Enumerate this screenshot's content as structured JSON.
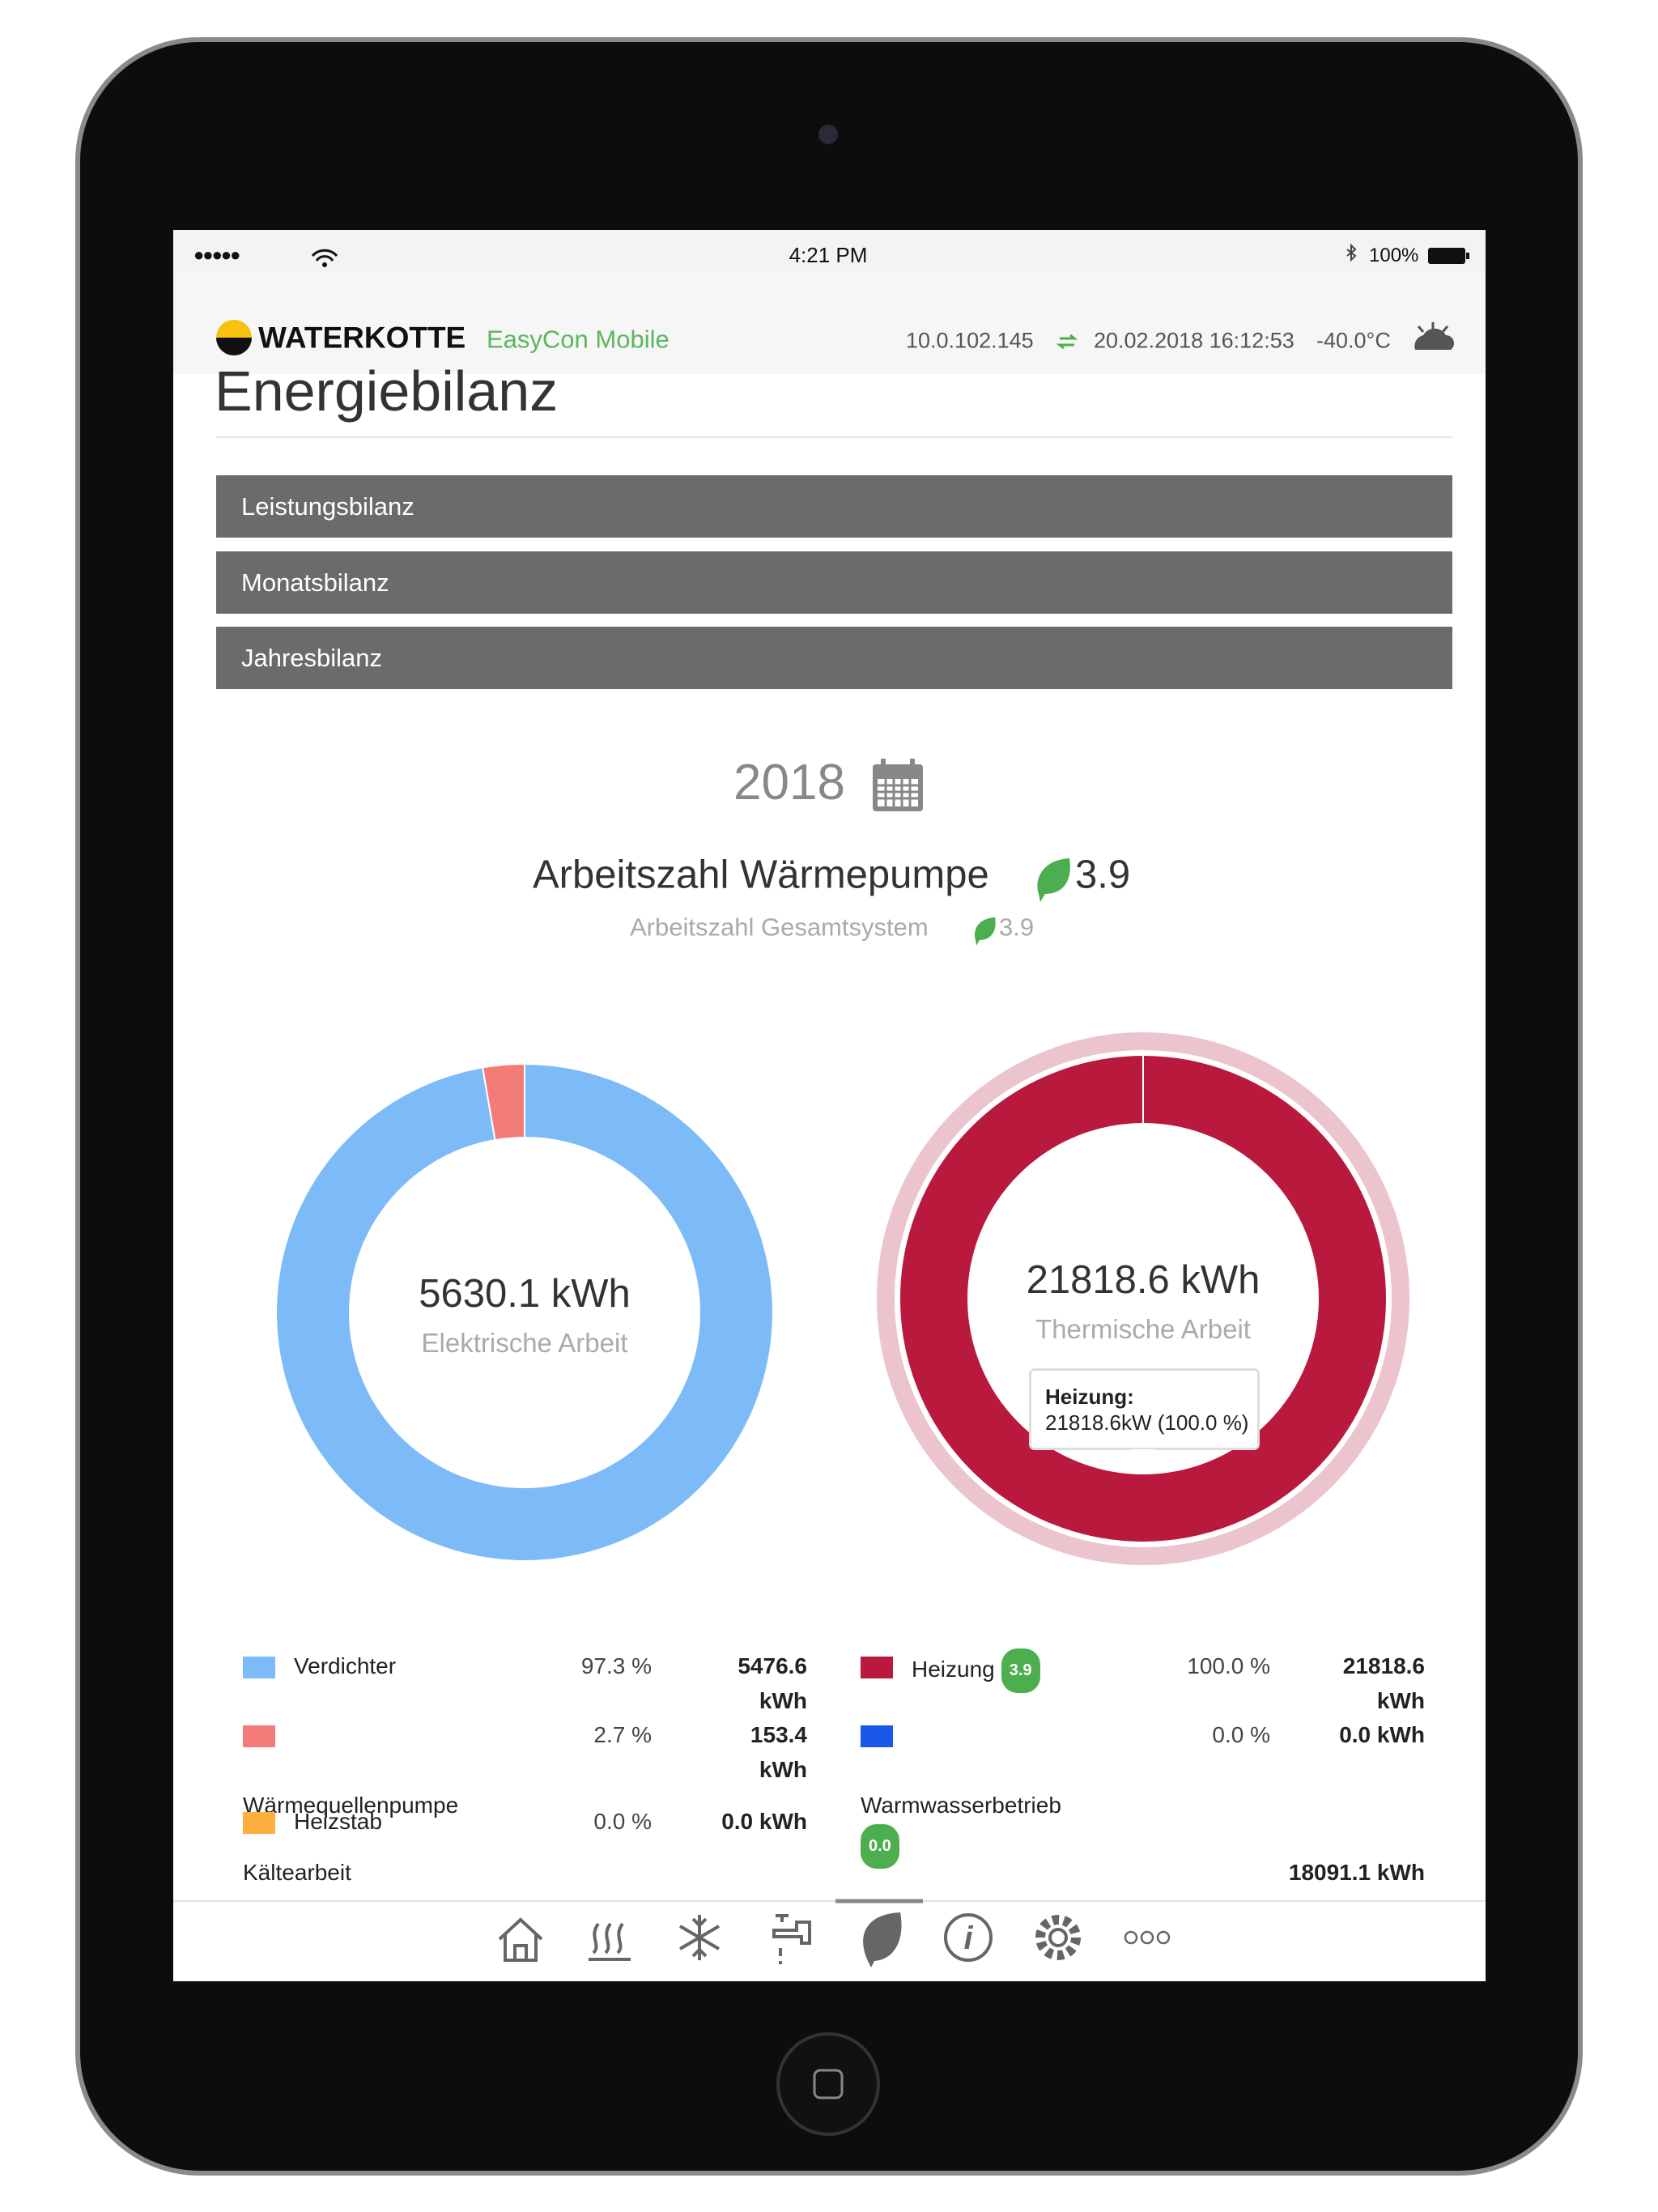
{
  "status_bar": {
    "signal": "●●●●●",
    "time": "4:21 PM",
    "battery": "100%"
  },
  "header": {
    "brand": "WATERKOTTE",
    "app": "EasyCon Mobile",
    "ip": "10.0.102.145",
    "datetime": "20.02.2018 16:12:53",
    "temperature": "-40.0°C"
  },
  "page_title": "Energiebilanz",
  "menu": [
    "Leistungsbilanz",
    "Monatsbilanz",
    "Jahresbilanz"
  ],
  "year": "2018",
  "cop": {
    "label": "Arbeitszahl Wärmepumpe",
    "value": "3.9",
    "system_label": "Arbeitszahl Gesamtsystem",
    "system_value": "3.9"
  },
  "charts": [
    {
      "type": "donut",
      "total": "5630.1 kWh",
      "label": "Elektrische Arbeit",
      "segments": [
        {
          "name": "Verdichter",
          "color": "#7dbbf8",
          "value": 97.3,
          "value_label": "97.3 %",
          "energy": "5476.6 kWh"
        },
        {
          "name": "Wärmequellenpumpe",
          "color": "#f47c78",
          "value": 2.7,
          "value_label": "2.7 %",
          "energy": "153.4 kWh"
        },
        {
          "name": "Heizstab",
          "color": "#fbb040",
          "value": 0.0,
          "value_label": "0.0 %",
          "energy": "0.0 kWh"
        }
      ]
    },
    {
      "type": "donut",
      "total": "21818.6 kWh",
      "label": "Thermische Arbeit",
      "tooltip": {
        "title": "Heizung:",
        "text": "21818.6kW (100.0 %)"
      },
      "segments": [
        {
          "name": "Heizung",
          "badge": "3.9",
          "color": "#b8193c",
          "value": 100.0,
          "value_label": "100.0 %",
          "energy": "21818.6 kWh"
        },
        {
          "name": "Warmwasserbetrieb",
          "badge": "0.0",
          "color": "#1a56e8",
          "value": 0.0,
          "value_label": "0.0 %",
          "energy": "0.0 kWh"
        }
      ]
    }
  ],
  "cold_work": {
    "label": "Kältearbeit",
    "value": "18091.1 kWh"
  }
}
